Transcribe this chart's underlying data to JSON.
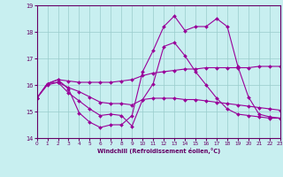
{
  "title": "",
  "xlabel": "Windchill (Refroidissement éolien,°C)",
  "ylabel": "",
  "xlim": [
    0,
    23
  ],
  "ylim": [
    14,
    19
  ],
  "yticks": [
    14,
    15,
    16,
    17,
    18,
    19
  ],
  "xticks": [
    0,
    1,
    2,
    3,
    4,
    5,
    6,
    7,
    8,
    9,
    10,
    11,
    12,
    13,
    14,
    15,
    16,
    17,
    18,
    19,
    20,
    21,
    22,
    23
  ],
  "bg_color": "#c8eff0",
  "line_color": "#990099",
  "grid_color": "#99cccc",
  "lines": [
    {
      "x": [
        0,
        1,
        2,
        3,
        4,
        5,
        6,
        7,
        8,
        9,
        10,
        11,
        12,
        13,
        14,
        15,
        16,
        17,
        18,
        19,
        20,
        21,
        22,
        23
      ],
      "y": [
        15.5,
        16.05,
        16.2,
        15.85,
        14.95,
        14.6,
        14.4,
        14.5,
        14.5,
        14.85,
        16.5,
        17.3,
        18.2,
        18.6,
        18.05,
        18.2,
        18.2,
        18.5,
        18.2,
        16.7,
        15.55,
        14.9,
        14.8,
        14.75
      ]
    },
    {
      "x": [
        0,
        1,
        2,
        3,
        4,
        5,
        6,
        7,
        8,
        9,
        10,
        11,
        12,
        13,
        14,
        15,
        16,
        17,
        18,
        19,
        20,
        21,
        22,
        23
      ],
      "y": [
        15.5,
        16.05,
        16.2,
        16.15,
        16.1,
        16.1,
        16.1,
        16.1,
        16.15,
        16.2,
        16.35,
        16.45,
        16.5,
        16.55,
        16.6,
        16.6,
        16.65,
        16.65,
        16.65,
        16.65,
        16.65,
        16.7,
        16.7,
        16.7
      ]
    },
    {
      "x": [
        0,
        1,
        2,
        3,
        4,
        5,
        6,
        7,
        8,
        9,
        10,
        11,
        12,
        13,
        14,
        15,
        16,
        17,
        18,
        19,
        20,
        21,
        22,
        23
      ],
      "y": [
        15.5,
        16.05,
        16.1,
        15.9,
        15.75,
        15.55,
        15.35,
        15.3,
        15.3,
        15.25,
        15.45,
        15.5,
        15.5,
        15.5,
        15.45,
        15.45,
        15.4,
        15.35,
        15.3,
        15.25,
        15.2,
        15.15,
        15.1,
        15.05
      ]
    },
    {
      "x": [
        0,
        1,
        2,
        3,
        4,
        5,
        6,
        7,
        8,
        9,
        10,
        11,
        12,
        13,
        14,
        15,
        16,
        17,
        18,
        19,
        20,
        21,
        22,
        23
      ],
      "y": [
        15.5,
        16.0,
        16.1,
        15.7,
        15.4,
        15.1,
        14.85,
        14.9,
        14.85,
        14.45,
        15.45,
        16.05,
        17.45,
        17.6,
        17.1,
        16.5,
        16.0,
        15.5,
        15.1,
        14.9,
        14.85,
        14.8,
        14.75,
        14.75
      ]
    }
  ]
}
